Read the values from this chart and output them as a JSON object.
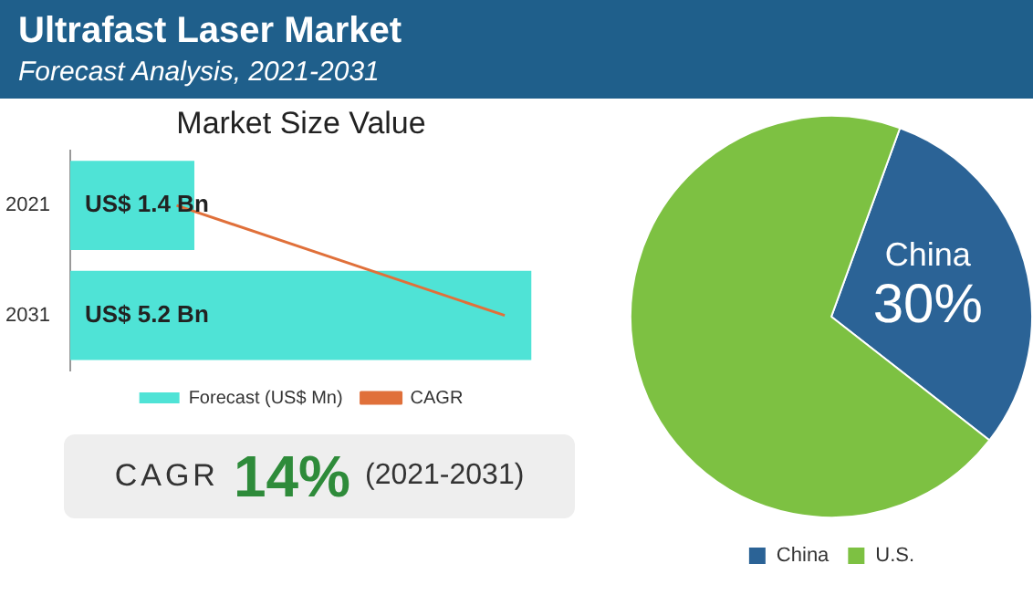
{
  "chart_data": [
    {
      "type": "other",
      "title": "Ultrafast Laser Market",
      "subtitle": "Forecast Analysis, 2021-2031"
    },
    {
      "type": "bar",
      "title": "Market Size Value",
      "orientation": "horizontal",
      "categories": [
        "2021",
        "2031"
      ],
      "legend": "bottom",
      "series": [
        {
          "name": "Forecast (US$ Mn)",
          "type": "bar",
          "color": "#4fe3d6",
          "values": [
            1.4,
            5.2
          ],
          "value_labels": [
            "US$ 1.4 Bn",
            "US$ 5.2 Bn"
          ]
        },
        {
          "name": "CAGR",
          "type": "line",
          "color": "#e0703a",
          "values": [
            1.2,
            4.9
          ]
        }
      ],
      "marker": "none"
    },
    {
      "type": "other",
      "annotations": [
        "CAGR",
        "14%",
        "(2021-2031)"
      ]
    },
    {
      "type": "pie",
      "categories": [
        "China",
        "U.S."
      ],
      "values": [
        30,
        70
      ],
      "colors": [
        "#2b6396",
        "#7dc142"
      ],
      "value_labels": [
        "30%",
        null
      ],
      "legend": "bottom"
    }
  ]
}
